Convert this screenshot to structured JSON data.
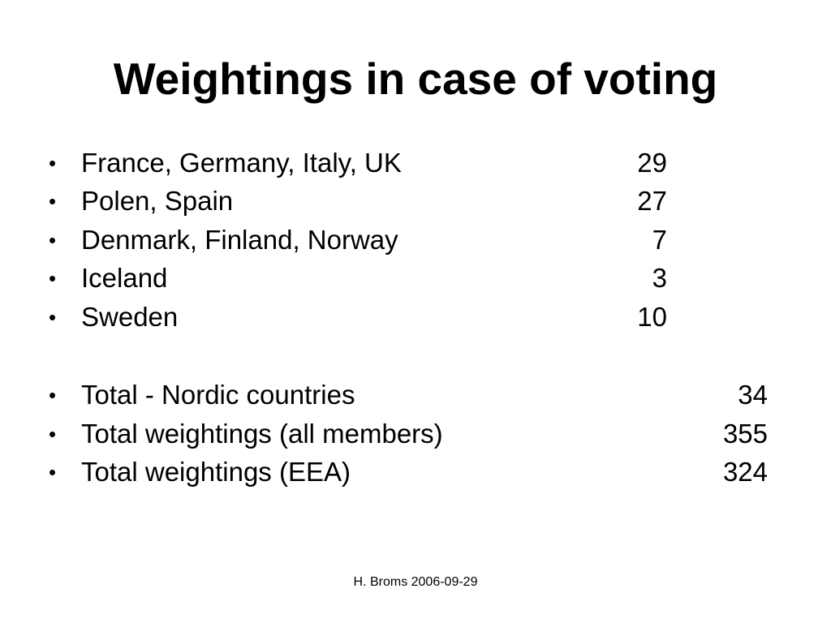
{
  "slide": {
    "title": "Weightings in case of voting",
    "bullet_symbol": "•",
    "items": [
      {
        "label": "France, Germany, Italy, UK",
        "value": "29"
      },
      {
        "label": "Polen, Spain",
        "value": "27"
      },
      {
        "label": "Denmark, Finland, Norway",
        "value": "7"
      },
      {
        "label": "Iceland",
        "value": "3"
      },
      {
        "label": "Sweden",
        "value": "10"
      }
    ],
    "totals": [
      {
        "label": "Total - Nordic countries",
        "value": "34"
      },
      {
        "label": "Total weightings (all members)",
        "value": "355"
      },
      {
        "label": "Total weightings (EEA)",
        "value": "324"
      }
    ],
    "footer": "H. Broms 2006-09-29"
  }
}
